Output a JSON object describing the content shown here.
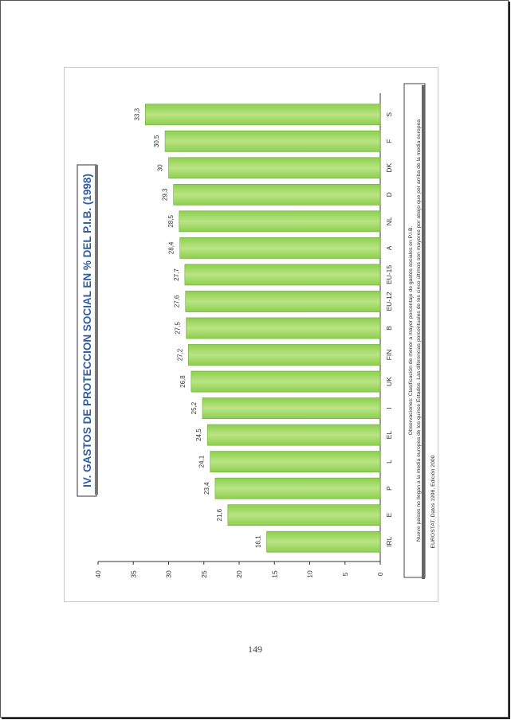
{
  "page": {
    "number": "149"
  },
  "chart_data": {
    "type": "bar",
    "orientation": "horizontal",
    "title": "IV. GASTOS DE PROTECCION SOCIAL EN % DEL P.I.B. (1998)",
    "categories": [
      "S",
      "F",
      "DK",
      "D",
      "NL",
      "A",
      "EU-15",
      "EU-12",
      "B",
      "FIN",
      "UK",
      "I",
      "EL",
      "L",
      "P",
      "E",
      "IRL"
    ],
    "values": [
      33.3,
      30.5,
      30,
      29.3,
      28.5,
      28.4,
      27.7,
      27.6,
      27.5,
      27.2,
      26.8,
      25.2,
      24.5,
      24.1,
      23.4,
      21.6,
      16.1
    ],
    "value_labels": [
      "33,3",
      "30,5",
      "30",
      "29,3",
      "28,5",
      "28,4",
      "27,7",
      "27,6",
      "27,5",
      "27,2",
      "26,8",
      "25,2",
      "24,5",
      "24,1",
      "23,4",
      "21,6",
      "16,1"
    ],
    "ticks": [
      "0",
      "5",
      "10",
      "15",
      "20",
      "25",
      "30",
      "35",
      "40"
    ],
    "xlim": [
      0,
      40
    ],
    "bar_color": "#8dcf4e",
    "bar_color_light": "#b9e484",
    "grid": false,
    "rotated": "90deg counter-clockwise (page in landscape)",
    "notes": [
      "Observaciones: Clasificación de menor a mayor porcentaje de gastos sociales en P.I.B.",
      "Nueve países no llegan a la media europea de los quince Estados. Las diferencias porcentuales de los cinco últimos son mayores por abajo que por arriba de la media europea"
    ],
    "source": "EUROSTAT. Datos 1998. Edición 2000"
  }
}
